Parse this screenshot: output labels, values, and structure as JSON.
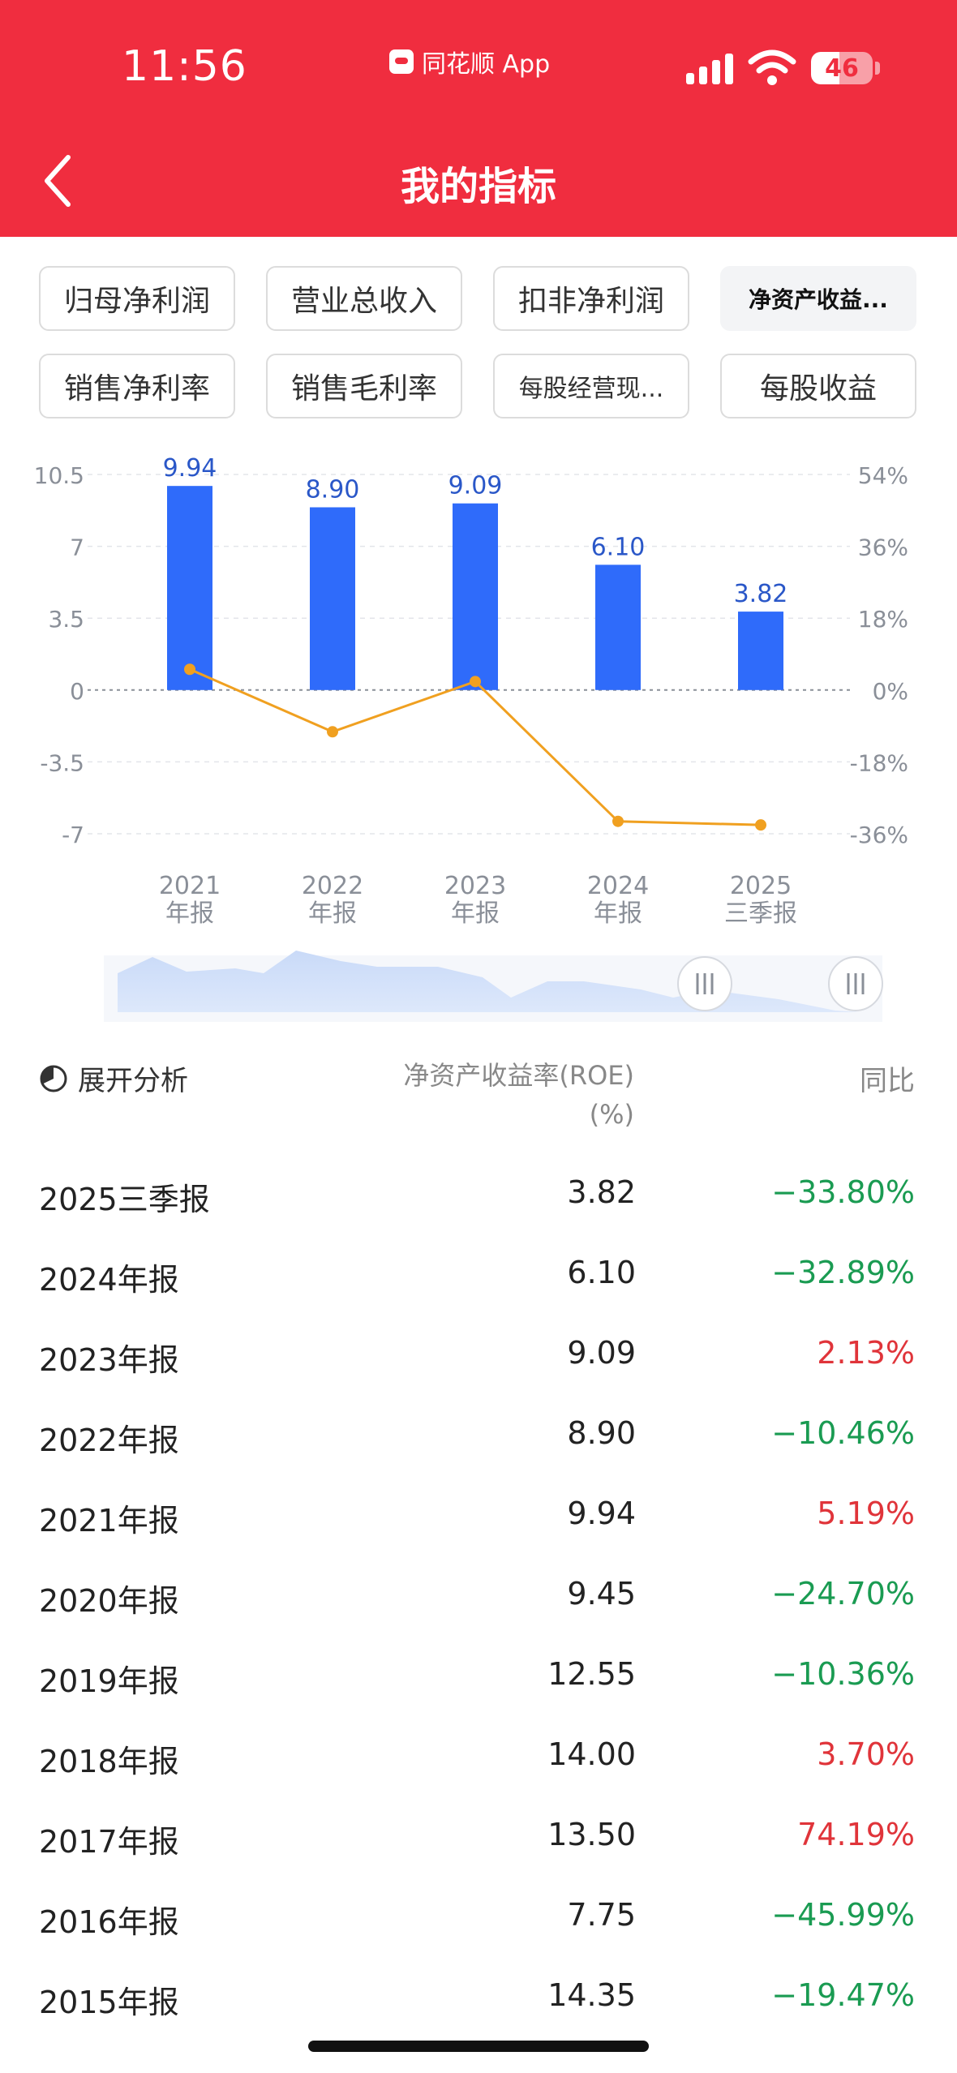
{
  "status_bar": {
    "time": "11:56",
    "app_name": "同花顺 App",
    "battery": "46",
    "battery_level": 0.46
  },
  "header": {
    "title": "我的指标",
    "color": "#f02d3f"
  },
  "chips": [
    {
      "label": "归母净利润",
      "active": false
    },
    {
      "label": "营业总收入",
      "active": false
    },
    {
      "label": "扣非净利润",
      "active": false
    },
    {
      "label": "净资产收益...",
      "active": true
    },
    {
      "label": "销售净利率",
      "active": false
    },
    {
      "label": "销售毛利率",
      "active": false
    },
    {
      "label": "每股经营现...",
      "active": false
    },
    {
      "label": "每股收益",
      "active": false
    }
  ],
  "chart_data": {
    "type": "bar",
    "categories": [
      [
        "2021",
        "年报"
      ],
      [
        "2022",
        "年报"
      ],
      [
        "2023",
        "年报"
      ],
      [
        "2024",
        "年报"
      ],
      [
        "2025",
        "三季报"
      ]
    ],
    "series": [
      {
        "values": [
          9.94,
          8.9,
          9.09,
          6.1,
          3.82
        ],
        "data_labels": [
          "9.94",
          "8.90",
          "9.09",
          "6.10",
          "3.82"
        ],
        "color": "#2f6bfa"
      },
      {
        "type": "line",
        "axis": "right",
        "values": [
          5.19,
          -10.46,
          2.13,
          -32.89,
          -33.8
        ],
        "unit": "%",
        "color": "#f0a020"
      }
    ],
    "y_left": {
      "range": [
        -7,
        10.5
      ],
      "ticks": [
        "10.5",
        "7",
        "3.5",
        "0",
        "-3.5",
        "-7"
      ]
    },
    "y_right": {
      "range": [
        -36,
        54
      ],
      "ticks": [
        "54%",
        "36%",
        "18%",
        "0%",
        "-18%",
        "-36%"
      ]
    },
    "grid": true
  },
  "table": {
    "analysis_label": "展开分析",
    "metric_header": "净资产收益率(ROE)(%)",
    "yoy_header": "同比",
    "rows": [
      {
        "period": "2025三季报",
        "value": "3.82",
        "yoy": "−33.80%",
        "dir": "down"
      },
      {
        "period": "2024年报",
        "value": "6.10",
        "yoy": "−32.89%",
        "dir": "down"
      },
      {
        "period": "2023年报",
        "value": "9.09",
        "yoy": "2.13%",
        "dir": "up"
      },
      {
        "period": "2022年报",
        "value": "8.90",
        "yoy": "−10.46%",
        "dir": "down"
      },
      {
        "period": "2021年报",
        "value": "9.94",
        "yoy": "5.19%",
        "dir": "up"
      },
      {
        "period": "2020年报",
        "value": "9.45",
        "yoy": "−24.70%",
        "dir": "down"
      },
      {
        "period": "2019年报",
        "value": "12.55",
        "yoy": "−10.36%",
        "dir": "down"
      },
      {
        "period": "2018年报",
        "value": "14.00",
        "yoy": "3.70%",
        "dir": "up"
      },
      {
        "period": "2017年报",
        "value": "13.50",
        "yoy": "74.19%",
        "dir": "up"
      },
      {
        "period": "2016年报",
        "value": "7.75",
        "yoy": "−45.99%",
        "dir": "down"
      },
      {
        "period": "2015年报",
        "value": "14.35",
        "yoy": "−19.47%",
        "dir": "down"
      }
    ],
    "colors": {
      "up": "#e0343a",
      "down": "#1a9b52"
    }
  }
}
